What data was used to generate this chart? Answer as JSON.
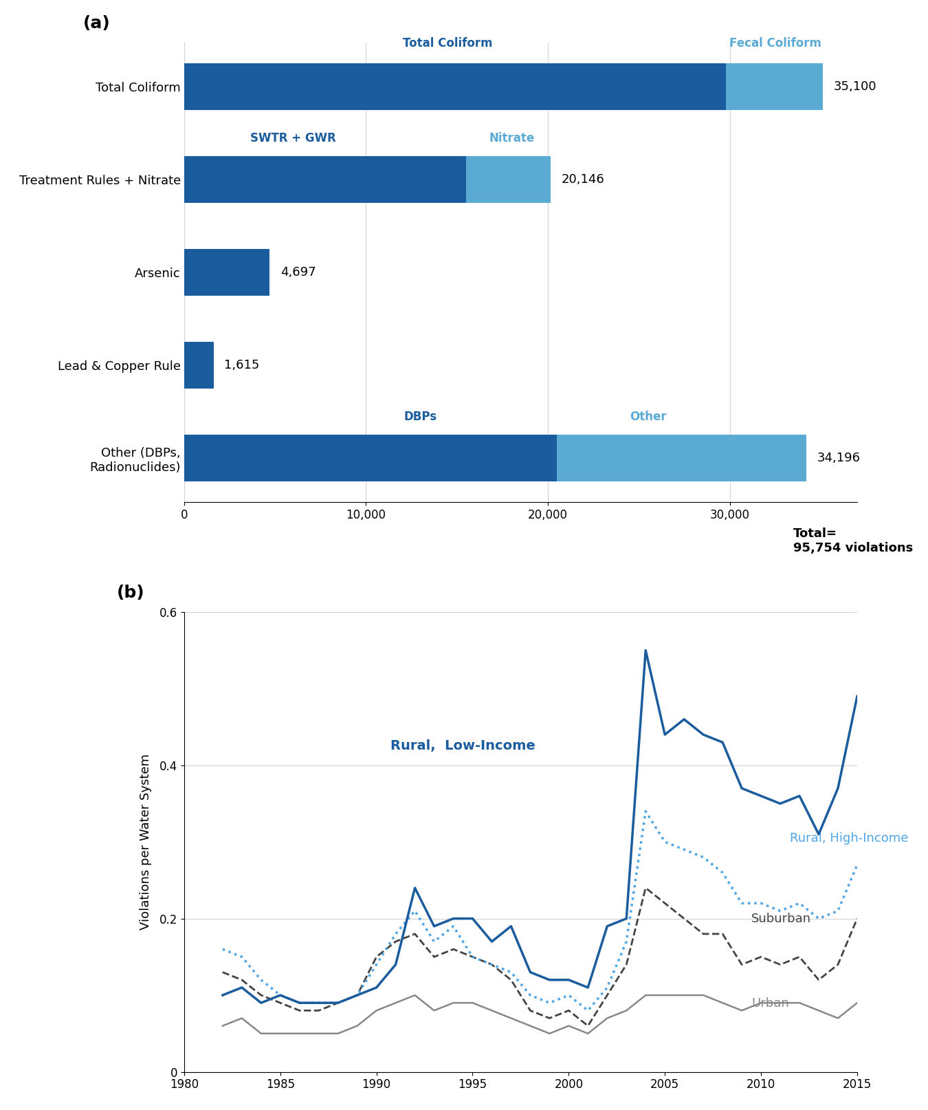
{
  "bar_categories": [
    "Total Coliform",
    "Treatment Rules + Nitrate",
    "Arsenic",
    "Lead & Copper Rule",
    "Other (DBPs,\nRadionuclides)"
  ],
  "bar_segment1": [
    29800,
    15500,
    4697,
    1615,
    20500
  ],
  "bar_segment2": [
    5300,
    4646,
    0,
    0,
    13696
  ],
  "bar_totals": [
    35100,
    20146,
    4697,
    1615,
    34196
  ],
  "bar_total_labels": [
    "35,100",
    "20,146",
    "4,697",
    "1,615",
    "34,196"
  ],
  "bar_color_dark": "#1a5c9e",
  "bar_color_light": "#5baad4",
  "bar_xlim": [
    0,
    37000
  ],
  "bar_xticks": [
    0,
    10000,
    20000,
    30000
  ],
  "bar_xticklabels": [
    "0",
    "10,000",
    "20,000",
    "30,000"
  ],
  "total_label": "Total=\n95,754 violations",
  "years": [
    1982,
    1983,
    1984,
    1985,
    1986,
    1987,
    1988,
    1989,
    1990,
    1991,
    1992,
    1993,
    1994,
    1995,
    1996,
    1997,
    1998,
    1999,
    2000,
    2001,
    2002,
    2003,
    2004,
    2005,
    2006,
    2007,
    2008,
    2009,
    2010,
    2011,
    2012,
    2013,
    2014,
    2015
  ],
  "rural_low": [
    0.1,
    0.11,
    0.09,
    0.1,
    0.09,
    0.09,
    0.09,
    0.1,
    0.11,
    0.14,
    0.24,
    0.19,
    0.2,
    0.2,
    0.17,
    0.19,
    0.13,
    0.12,
    0.12,
    0.11,
    0.19,
    0.2,
    0.55,
    0.44,
    0.46,
    0.44,
    0.43,
    0.37,
    0.36,
    0.35,
    0.36,
    0.31,
    0.37,
    0.49
  ],
  "rural_high": [
    0.16,
    0.15,
    0.12,
    0.1,
    0.09,
    0.09,
    0.09,
    0.1,
    0.14,
    0.18,
    0.21,
    0.17,
    0.19,
    0.15,
    0.14,
    0.13,
    0.1,
    0.09,
    0.1,
    0.08,
    0.11,
    0.17,
    0.34,
    0.3,
    0.29,
    0.28,
    0.26,
    0.22,
    0.22,
    0.21,
    0.22,
    0.2,
    0.21,
    0.27
  ],
  "suburban": [
    0.13,
    0.12,
    0.1,
    0.09,
    0.08,
    0.08,
    0.09,
    0.1,
    0.15,
    0.17,
    0.18,
    0.15,
    0.16,
    0.15,
    0.14,
    0.12,
    0.08,
    0.07,
    0.08,
    0.06,
    0.1,
    0.14,
    0.24,
    0.22,
    0.2,
    0.18,
    0.18,
    0.14,
    0.15,
    0.14,
    0.15,
    0.12,
    0.14,
    0.2
  ],
  "urban": [
    0.06,
    0.07,
    0.05,
    0.05,
    0.05,
    0.05,
    0.05,
    0.06,
    0.08,
    0.09,
    0.1,
    0.08,
    0.09,
    0.09,
    0.08,
    0.07,
    0.06,
    0.05,
    0.06,
    0.05,
    0.07,
    0.08,
    0.1,
    0.1,
    0.1,
    0.1,
    0.09,
    0.08,
    0.09,
    0.09,
    0.09,
    0.08,
    0.07,
    0.09
  ],
  "line_color_dark_blue": "#1a5c9e",
  "line_color_light_blue": "#4da6e8",
  "line_color_dark_gray": "#444444",
  "line_color_gray": "#888888",
  "ylabel_b": "Violations per Water System",
  "ylim_b": [
    0,
    0.6
  ],
  "yticks_b": [
    0,
    0.2,
    0.4,
    0.6
  ],
  "xlim_b": [
    1980,
    2015
  ],
  "xticks_b": [
    1980,
    1985,
    1990,
    1995,
    2000,
    2005,
    2010,
    2015
  ]
}
